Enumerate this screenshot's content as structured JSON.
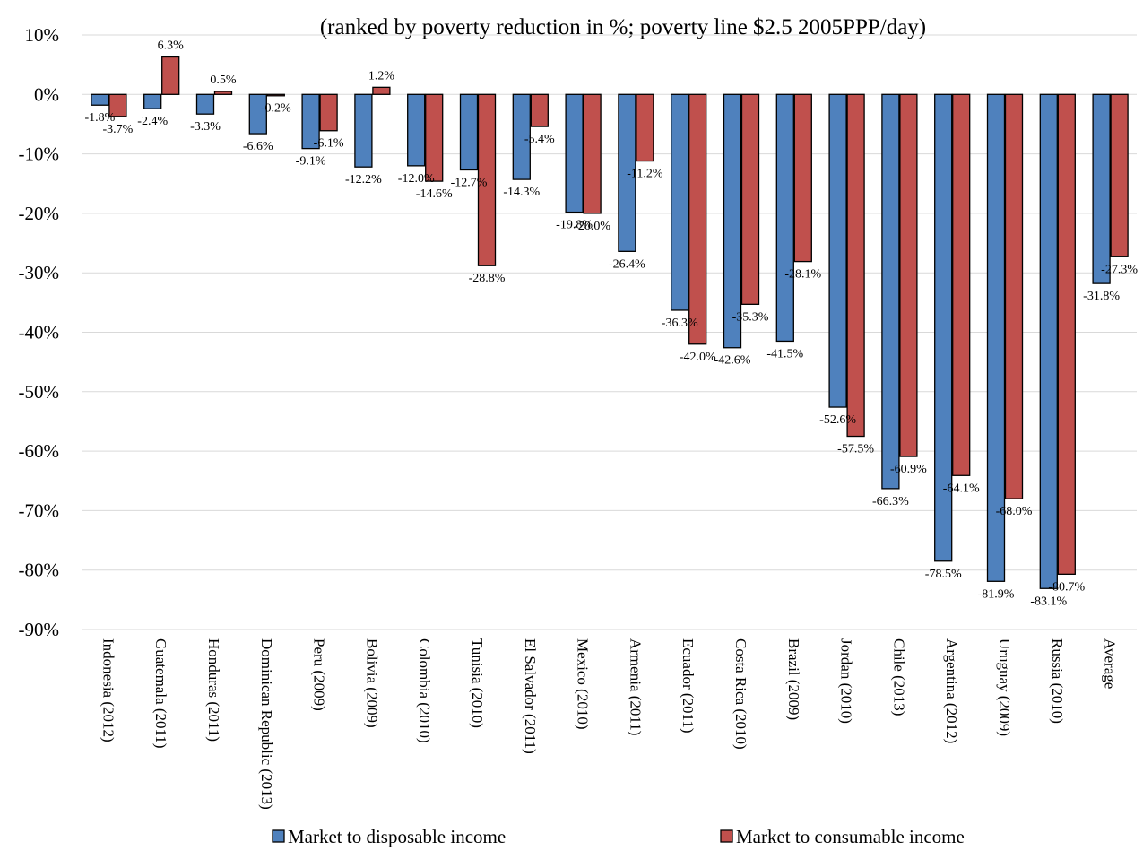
{
  "chart_data": {
    "type": "bar",
    "title": "(ranked by poverty reduction in %; poverty line $2.5 2005PPP/day)",
    "categories": [
      "Indonesia (2012)",
      "Guatemala (2011)",
      "Honduras (2011)",
      "Dominican Republic (2013)",
      "Peru (2009)",
      "Bolivia (2009)",
      "Colombia (2010)",
      "Tunisia (2010)",
      "El Salvador (2011)",
      "Mexico (2010)",
      "Armenia (2011)",
      "Ecuador (2011)",
      "Costa Rica (2010)",
      "Brazil (2009)",
      "Jordan (2010)",
      "Chile (2013)",
      "Argentina (2012)",
      "Uruguay (2009)",
      "Russia (2010)",
      "Average"
    ],
    "series": [
      {
        "name": "Market to disposable income",
        "color": "#4f81bd",
        "values": [
          -1.8,
          -2.4,
          -3.3,
          -6.6,
          -9.1,
          -12.2,
          -12.0,
          -12.7,
          -14.3,
          -19.8,
          -26.4,
          -36.3,
          -42.6,
          -41.5,
          -52.6,
          -66.3,
          -78.5,
          -81.9,
          -83.1,
          -31.8
        ],
        "labels": [
          "-1.8%",
          "-2.4%",
          "-3.3%",
          "-6.6%",
          "-9.1%",
          "-12.2%",
          "-12.0%",
          "-12.7%",
          "-14.3%",
          "-19.8%",
          "-26.4%",
          "-36.3%",
          "-42.6%",
          "-41.5%",
          "-52.6%",
          "-66.3%",
          "-78.5%",
          "-81.9%",
          "-83.1%",
          "-31.8%"
        ]
      },
      {
        "name": "Market to consumable income",
        "color": "#c0504d",
        "values": [
          -3.7,
          6.3,
          0.5,
          -0.2,
          -6.1,
          1.2,
          -14.6,
          -28.8,
          -5.4,
          -20.0,
          -11.2,
          -42.0,
          -35.3,
          -28.1,
          -57.5,
          -60.9,
          -64.1,
          -68.0,
          -80.7,
          -27.3
        ],
        "labels": [
          "-3.7%",
          "6.3%",
          "0.5%",
          "-0.2%",
          "-6.1%",
          "1.2%",
          "-14.6%",
          "-28.8%",
          "-5.4%",
          "-20.0%",
          "-11.2%",
          "-42.0%",
          "-35.3%",
          "-28.1%",
          "-57.5%",
          "-60.9%",
          "-64.1%",
          "-68.0%",
          "-80.7%",
          "-27.3%"
        ]
      }
    ],
    "y_ticks": [
      "10%",
      "0%",
      "-10%",
      "-20%",
      "-30%",
      "-40%",
      "-50%",
      "-60%",
      "-70%",
      "-80%",
      "-90%"
    ],
    "y_tick_values": [
      10,
      0,
      -10,
      -20,
      -30,
      -40,
      -50,
      -60,
      -70,
      -80,
      -90
    ],
    "ylim": [
      -90,
      10
    ],
    "xlabel": "",
    "ylabel": "",
    "grid": true,
    "legend_position": "bottom"
  }
}
